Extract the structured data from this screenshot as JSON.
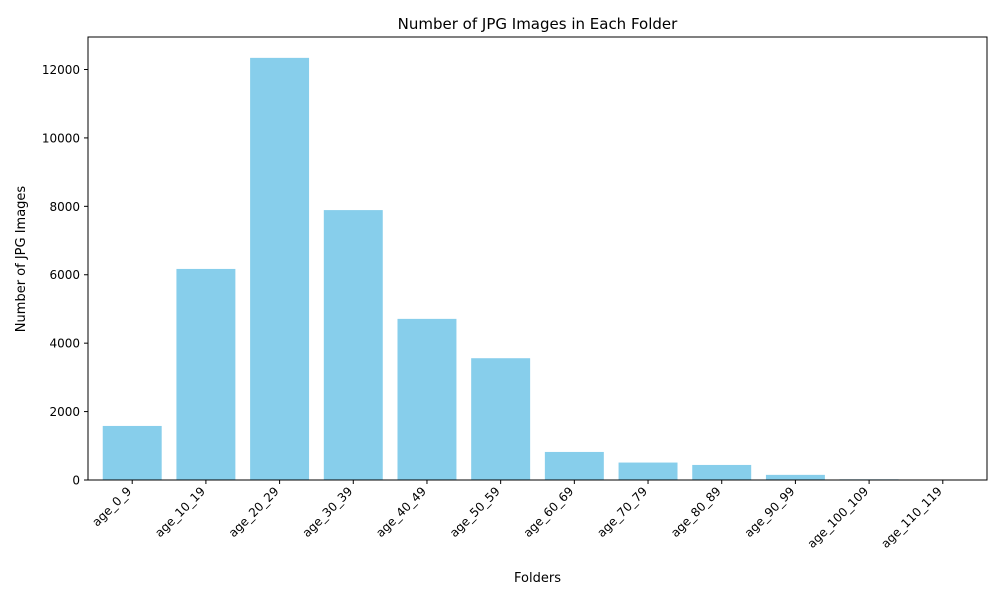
{
  "chart_data": {
    "type": "bar",
    "title": "Number of JPG Images in Each Folder",
    "xlabel": "Folders",
    "ylabel": "Number of JPG Images",
    "categories": [
      "age_0_9",
      "age_10_19",
      "age_20_29",
      "age_30_39",
      "age_40_49",
      "age_50_59",
      "age_60_69",
      "age_70_79",
      "age_80_89",
      "age_90_99",
      "age_100_109",
      "age_110_119"
    ],
    "values": [
      1580,
      6170,
      12340,
      7890,
      4710,
      3560,
      820,
      510,
      440,
      150,
      20,
      10
    ],
    "ylim": [
      0,
      12950
    ],
    "yticks": [
      0,
      2000,
      4000,
      6000,
      8000,
      10000,
      12000
    ],
    "bar_color": "#87ceeb",
    "grid": false,
    "legend": "none"
  }
}
